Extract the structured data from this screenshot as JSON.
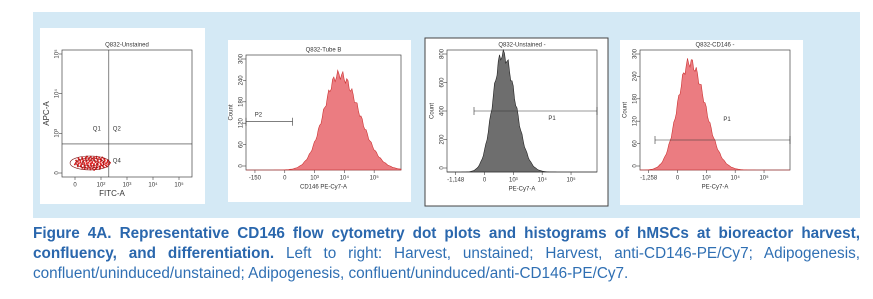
{
  "figure": {
    "panels": [
      {
        "title": "Q832-Unstained",
        "y_label": "APC-A",
        "x_label": "FITC-A",
        "gates": [
          "Q1",
          "Q2",
          "Q4"
        ],
        "x_ticks": [
          "0",
          "10²",
          "10³",
          "10⁴",
          "10⁵"
        ],
        "y_ticks": [
          "10⁵",
          "10⁴",
          "10³",
          "0"
        ]
      },
      {
        "title": "Q832-Tube B",
        "y_label": "Count",
        "x_label": "CD146 PE-Cy7-A",
        "gates": [
          "P2"
        ],
        "x_ticks": [
          "-150",
          "0",
          "10³",
          "10⁴",
          "10⁵"
        ],
        "y_ticks": [
          "300",
          "240",
          "180",
          "120",
          "60",
          "0"
        ]
      },
      {
        "title": "Q832-Unstained -",
        "y_label": "Count",
        "x_label": "PE-Cy7-A",
        "gates": [
          "P1"
        ],
        "x_ticks": [
          "-1,148",
          "0",
          "10³",
          "10⁴",
          "10⁵"
        ],
        "y_ticks": [
          "800",
          "600",
          "400",
          "200",
          "0"
        ]
      },
      {
        "title": "Q832-CD146 -",
        "y_label": "Count",
        "x_label": "PE-Cy7-A",
        "gates": [
          "P1"
        ],
        "x_ticks": [
          "-1,258",
          "0",
          "10³",
          "10⁴",
          "10⁵"
        ],
        "y_ticks": [
          "300",
          "240",
          "180",
          "120",
          "60",
          "0"
        ]
      }
    ],
    "caption": {
      "heading": "Figure 4A. Representative CD146 flow cytometry dot plots and histograms of hMSCs at bioreactor harvest, confluency, and differentiation.",
      "text": "Left to right: Harvest, unstained; Harvest, anti-CD146-PE/Cy7; Adipogenesis, confluent/uninduced/unstained; Adipogenesis, confluent/uninduced/anti-CD146-PE/Cy7."
    }
  }
}
